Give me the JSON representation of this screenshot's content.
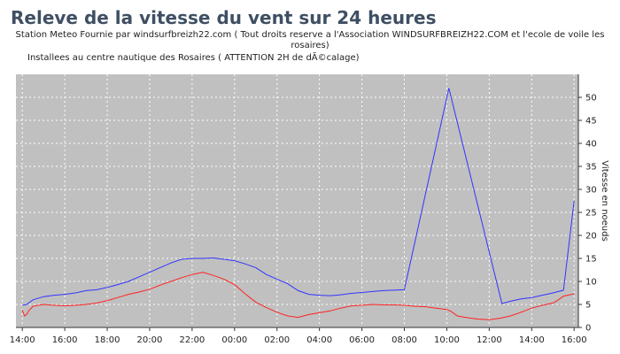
{
  "header": {
    "title": "Releve de la vitesse du vent sur 24 heures",
    "subtitle_line1": "Station Meteo Fournie  par windsurfbreizh22.com  ( Tout droits reserve a l'Association WINDSURFBREIZH22.COM  et l'ecole de voile les",
    "subtitle_line2": "rosaires)",
    "subtitle_line3": "Installees au centre nautique des Rosaires ( ATTENTION 2H de dÃ©calage)"
  },
  "colors": {
    "plot_background": "#c0c0c0",
    "grid": "#ffffff",
    "series_blue": "#3333ff",
    "series_red": "#ff2222"
  },
  "chart_data": {
    "type": "line",
    "title": "Releve de la vitesse du vent sur 24 heures",
    "xlabel": "",
    "ylabel": "Vitesse en noeuds",
    "y_axis_side": "right",
    "grid": true,
    "legend": "none",
    "x_unit": "hours since 14:00",
    "xlim": [
      -0.3,
      26.2
    ],
    "ylim": [
      0,
      55
    ],
    "x_ticks": [
      {
        "x": 0,
        "label": "14:00"
      },
      {
        "x": 2,
        "label": "16:00"
      },
      {
        "x": 4,
        "label": "18:00"
      },
      {
        "x": 6,
        "label": "20:00"
      },
      {
        "x": 8,
        "label": "22:00"
      },
      {
        "x": 10,
        "label": "00:00"
      },
      {
        "x": 12,
        "label": "02:00"
      },
      {
        "x": 14,
        "label": "04:00"
      },
      {
        "x": 16,
        "label": "06:00"
      },
      {
        "x": 18,
        "label": "08:00"
      },
      {
        "x": 20,
        "label": "10:00"
      },
      {
        "x": 22,
        "label": "12:00"
      },
      {
        "x": 24,
        "label": "14:00"
      },
      {
        "x": 26,
        "label": "16:00"
      }
    ],
    "y_ticks": [
      0,
      5,
      10,
      15,
      20,
      25,
      30,
      35,
      40,
      45,
      50
    ],
    "series": [
      {
        "color": "#3333ff",
        "x": [
          0,
          0.2,
          0.5,
          1,
          1.5,
          2,
          2.5,
          3,
          3.5,
          4,
          4.5,
          5,
          5.5,
          6,
          6.5,
          7,
          7.5,
          8,
          8.5,
          9,
          9.5,
          10,
          10.5,
          11,
          11.5,
          12,
          12.5,
          13,
          13.5,
          14,
          14.5,
          15,
          15.5,
          16,
          16.5,
          17,
          17.5,
          18,
          20.1,
          22.6,
          23,
          23.5,
          24,
          24.5,
          25,
          25.5,
          26
        ],
        "y": [
          4.8,
          5,
          6,
          6.7,
          7,
          7.2,
          7.5,
          8,
          8.2,
          8.7,
          9.3,
          10,
          11,
          12,
          13,
          14,
          14.8,
          15,
          15,
          15.1,
          14.8,
          14.5,
          13.8,
          13,
          11.5,
          10.5,
          9.5,
          8,
          7.2,
          7,
          6.9,
          7.1,
          7.4,
          7.6,
          7.8,
          8,
          8.1,
          8.2,
          52,
          5.2,
          5.7,
          6.2,
          6.5,
          7,
          7.5,
          8.1,
          27.5
        ]
      },
      {
        "color": "#ff2222",
        "x": [
          0,
          0.1,
          0.2,
          0.3,
          0.5,
          1,
          1.5,
          2,
          2.5,
          3,
          3.5,
          4,
          4.5,
          5,
          5.5,
          6,
          6.5,
          7,
          7.5,
          8,
          8.5,
          9,
          9.5,
          10,
          10.5,
          11,
          11.5,
          12,
          12.5,
          13,
          13.5,
          14,
          14.5,
          15,
          15.5,
          16,
          16.5,
          17,
          17.5,
          18,
          18.5,
          19,
          19.5,
          20,
          20.2,
          20.5,
          21,
          21.5,
          22,
          22.5,
          23,
          23.5,
          24,
          24.5,
          25,
          25.2,
          25.5,
          26
        ],
        "y": [
          3.8,
          2.5,
          2.8,
          3.6,
          4.6,
          5,
          4.8,
          4.7,
          4.8,
          5,
          5.3,
          5.8,
          6.5,
          7.2,
          7.7,
          8.3,
          9.2,
          10,
          10.8,
          11.5,
          12,
          11.3,
          10.5,
          9.3,
          7.3,
          5.5,
          4.3,
          3.3,
          2.5,
          2.2,
          2.8,
          3.2,
          3.6,
          4.2,
          4.7,
          4.8,
          5,
          4.9,
          4.9,
          4.8,
          4.6,
          4.5,
          4.2,
          3.9,
          3.5,
          2.5,
          2.1,
          1.8,
          1.7,
          2,
          2.5,
          3.3,
          4.2,
          4.8,
          5.3,
          5.8,
          6.8,
          7.3
        ]
      }
    ]
  }
}
